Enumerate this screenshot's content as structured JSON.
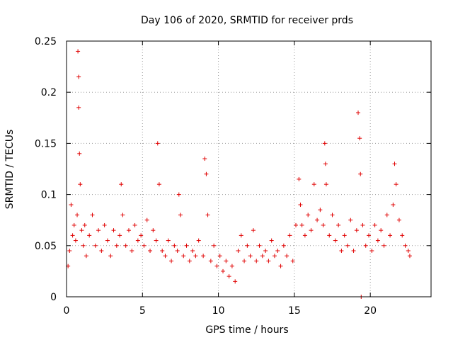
{
  "chart_data": {
    "type": "scatter",
    "title": "Day 106 of 2020, SRMTID for receiver prds",
    "xlabel": "GPS time / hours",
    "ylabel": "SRMTID / TECUs",
    "xlim": [
      0,
      24
    ],
    "ylim": [
      0,
      0.25
    ],
    "xticks": [
      0,
      5,
      10,
      15,
      20
    ],
    "xtick_labels": [
      "0",
      "5",
      "10",
      "15",
      "20"
    ],
    "yticks": [
      0,
      0.05,
      0.1,
      0.15,
      0.2,
      0.25
    ],
    "ytick_labels": [
      "0",
      "0.05",
      "0.1",
      "0.15",
      "0.2",
      "0.25"
    ],
    "grid": true,
    "marker": "+",
    "color": "#e00000",
    "series": [
      {
        "name": "SRMTID",
        "x": [
          0.1,
          0.2,
          0.3,
          0.4,
          0.5,
          0.6,
          0.7,
          0.75,
          0.8,
          0.8,
          0.85,
          0.9,
          1.0,
          1.1,
          1.2,
          1.3,
          1.5,
          1.7,
          1.9,
          2.1,
          2.3,
          2.5,
          2.7,
          2.9,
          3.1,
          3.3,
          3.5,
          3.6,
          3.7,
          3.9,
          4.1,
          4.3,
          4.5,
          4.7,
          4.9,
          5.1,
          5.3,
          5.5,
          5.7,
          5.9,
          6.0,
          6.1,
          6.3,
          6.5,
          6.7,
          6.9,
          7.1,
          7.3,
          7.4,
          7.5,
          7.7,
          7.9,
          8.1,
          8.3,
          8.5,
          8.7,
          9.0,
          9.1,
          9.2,
          9.3,
          9.5,
          9.7,
          9.9,
          10.1,
          10.3,
          10.5,
          10.7,
          10.9,
          11.1,
          11.3,
          11.5,
          11.7,
          11.9,
          12.1,
          12.3,
          12.5,
          12.7,
          12.9,
          13.1,
          13.3,
          13.5,
          13.7,
          13.9,
          14.1,
          14.3,
          14.5,
          14.7,
          14.9,
          15.1,
          15.3,
          15.4,
          15.5,
          15.7,
          15.9,
          16.1,
          16.3,
          16.5,
          16.7,
          16.9,
          17.0,
          17.05,
          17.1,
          17.3,
          17.5,
          17.7,
          17.9,
          18.1,
          18.3,
          18.5,
          18.7,
          18.9,
          19.1,
          19.2,
          19.3,
          19.35,
          19.4,
          19.5,
          19.7,
          19.9,
          20.1,
          20.3,
          20.5,
          20.7,
          20.9,
          21.1,
          21.3,
          21.5,
          21.6,
          21.7,
          21.9,
          22.1,
          22.3,
          22.5,
          22.6
        ],
        "y": [
          0.03,
          0.045,
          0.09,
          0.06,
          0.07,
          0.055,
          0.08,
          0.24,
          0.215,
          0.185,
          0.14,
          0.11,
          0.065,
          0.05,
          0.07,
          0.04,
          0.06,
          0.08,
          0.05,
          0.065,
          0.045,
          0.07,
          0.055,
          0.04,
          0.065,
          0.05,
          0.06,
          0.11,
          0.08,
          0.05,
          0.065,
          0.045,
          0.07,
          0.055,
          0.06,
          0.05,
          0.075,
          0.045,
          0.065,
          0.055,
          0.15,
          0.11,
          0.045,
          0.04,
          0.055,
          0.035,
          0.05,
          0.045,
          0.1,
          0.08,
          0.04,
          0.05,
          0.035,
          0.045,
          0.04,
          0.055,
          0.04,
          0.135,
          0.12,
          0.08,
          0.035,
          0.05,
          0.03,
          0.04,
          0.025,
          0.035,
          0.02,
          0.03,
          0.015,
          0.045,
          0.06,
          0.035,
          0.05,
          0.04,
          0.065,
          0.035,
          0.05,
          0.04,
          0.045,
          0.035,
          0.055,
          0.04,
          0.045,
          0.03,
          0.05,
          0.04,
          0.06,
          0.035,
          0.07,
          0.115,
          0.09,
          0.07,
          0.06,
          0.08,
          0.065,
          0.11,
          0.075,
          0.085,
          0.07,
          0.15,
          0.13,
          0.11,
          0.06,
          0.08,
          0.055,
          0.07,
          0.045,
          0.06,
          0.05,
          0.075,
          0.045,
          0.065,
          0.18,
          0.155,
          0.12,
          0.0,
          0.07,
          0.05,
          0.06,
          0.045,
          0.07,
          0.055,
          0.065,
          0.05,
          0.08,
          0.06,
          0.09,
          0.13,
          0.11,
          0.075,
          0.06,
          0.05,
          0.045,
          0.04
        ]
      }
    ]
  }
}
